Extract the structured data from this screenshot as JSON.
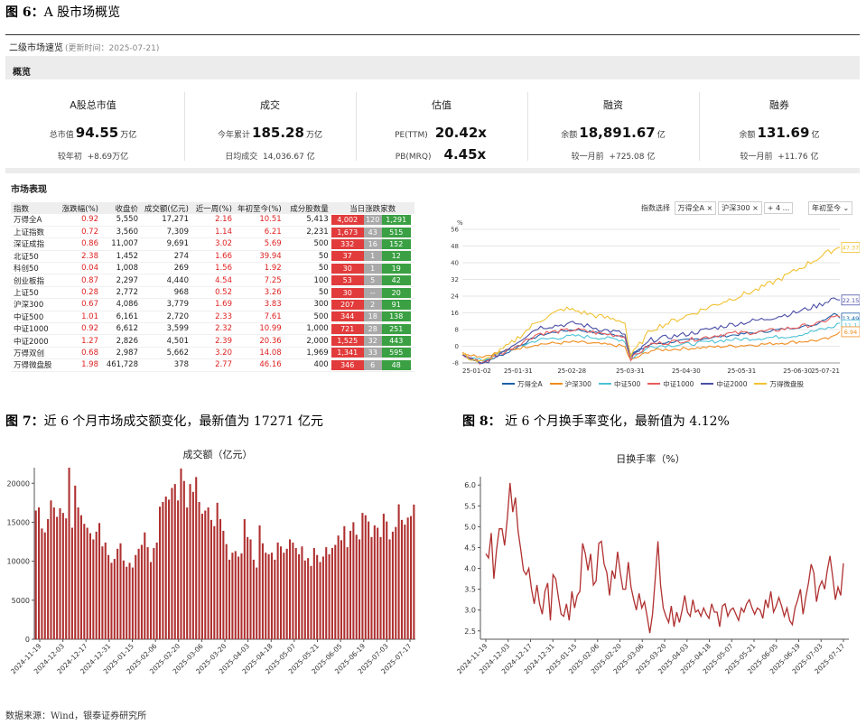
{
  "fig6": {
    "label": "图 6：",
    "text": "A 股市场概览"
  },
  "panel": {
    "title": "二级市场速览",
    "updated": "(更新时间：2025-07-21)",
    "overview_label": "概览",
    "market_label": "市场表现"
  },
  "cards": [
    {
      "title": "A股总市值",
      "l1": "总市值",
      "v1": "94.55",
      "u1": "万亿",
      "l2": "较年初",
      "v2": "+8.69万亿"
    },
    {
      "title": "成交",
      "l1": "今年累计",
      "v1": "185.28",
      "u1": "万亿",
      "l2": "日均成交",
      "v2": "14,036.67 亿"
    },
    {
      "title": "估值",
      "l1": "PE(TTM)",
      "v1": "20.42x",
      "u1": "",
      "l2": "PB(MRQ)",
      "v2": "4.45x"
    },
    {
      "title": "融资",
      "l1": "余额",
      "v1": "18,891.67",
      "u1": "亿",
      "l2": "较一月前",
      "v2": "+725.08 亿"
    },
    {
      "title": "融券",
      "l1": "余额",
      "v1": "131.69",
      "u1": "亿",
      "l2": "较一月前",
      "v2": "+11.76 亿"
    }
  ],
  "table": {
    "headers": [
      "指数",
      "涨跌幅(%)",
      "收盘价",
      "成交额(亿元)",
      "近一周(%)",
      "年初至今(%)",
      "成分股数量",
      "当日涨跌家数"
    ],
    "rows": [
      [
        "万得全A",
        "0.92",
        "5,550",
        "17,271",
        "2.16",
        "10.51",
        "5,413",
        "4,002",
        "120",
        "1,291"
      ],
      [
        "上证指数",
        "0.72",
        "3,560",
        "7,309",
        "1.14",
        "6.21",
        "2,231",
        "1,673",
        "43",
        "515"
      ],
      [
        "深证成指",
        "0.86",
        "11,007",
        "9,691",
        "3.02",
        "5.69",
        "500",
        "332",
        "16",
        "152"
      ],
      [
        "北证50",
        "2.38",
        "1,452",
        "274",
        "1.66",
        "39.94",
        "50",
        "37",
        "1",
        "12"
      ],
      [
        "科创50",
        "0.04",
        "1,008",
        "269",
        "1.56",
        "1.92",
        "50",
        "30",
        "1",
        "19"
      ],
      [
        "创业板指",
        "0.87",
        "2,297",
        "4,440",
        "4.54",
        "7.25",
        "100",
        "53",
        "5",
        "42"
      ],
      [
        "上证50",
        "0.28",
        "2,772",
        "968",
        "0.52",
        "3.26",
        "50",
        "30",
        "--",
        "20"
      ],
      [
        "沪深300",
        "0.67",
        "4,086",
        "3,779",
        "1.69",
        "3.83",
        "300",
        "207",
        "2",
        "91"
      ],
      [
        "中证500",
        "1.01",
        "6,161",
        "2,720",
        "2.33",
        "7.61",
        "500",
        "344",
        "18",
        "138"
      ],
      [
        "中证1000",
        "0.92",
        "6,612",
        "3,599",
        "2.32",
        "10.99",
        "1,000",
        "721",
        "28",
        "251"
      ],
      [
        "中证2000",
        "1.27",
        "2,826",
        "4,501",
        "2.39",
        "20.36",
        "2,000",
        "1,525",
        "32",
        "443"
      ],
      [
        "万得双创",
        "0.68",
        "2,987",
        "5,662",
        "3.20",
        "14.08",
        "1,969",
        "1,341",
        "33",
        "595"
      ],
      [
        "万得微盘股",
        "1.98",
        "461,728",
        "378",
        "2.77",
        "46.16",
        "400",
        "346",
        "6",
        "48"
      ]
    ]
  },
  "controls": {
    "label": "指数选择",
    "chip1": "万得全A ×",
    "chip2": "沪深300 ×",
    "chip3": "+ 4 ...",
    "period": "年初至今 ⌄"
  },
  "line_chart": {
    "unit": "%",
    "y_ticks": [
      "56",
      "48",
      "40",
      "32",
      "24",
      "16",
      "8",
      "0",
      "-8"
    ],
    "x_ticks": [
      "25-01-02",
      "25-01-31",
      "25-02-28",
      "25-03-31",
      "25-04-30",
      "25-05-31",
      "25-06-30",
      "25-07-21"
    ],
    "end_labels": [
      "47.37",
      "22.15",
      "14.06",
      "13.49",
      "11.1",
      "6.94"
    ],
    "legend": [
      "万得全A",
      "沪深300",
      "中证500",
      "中证1000",
      "中证2000",
      "万得微盘股"
    ],
    "colors": [
      "#1f5fa8",
      "#f08c1e",
      "#4cc2d6",
      "#e85c5c",
      "#4b4fa6",
      "#f1c232"
    ]
  },
  "fig7": {
    "label": "图 7：",
    "text": "近 6 个月市场成交额变化，最新值为 17271 亿元"
  },
  "fig8": {
    "label": "图 8：",
    "text": "近 6 个月换手率变化，最新值为 4.12%"
  },
  "chart_data": [
    {
      "type": "bar",
      "title": "成交额（亿元）",
      "ylim": [
        0,
        22000
      ],
      "y_ticks": [
        0,
        5000,
        10000,
        15000,
        20000
      ],
      "x_tick_labels": [
        "2024-11-19",
        "2024-12-03",
        "2024-12-17",
        "2024-12-31",
        "2025-01-15",
        "2025-02-06",
        "2025-02-20",
        "2025-03-06",
        "2025-03-20",
        "2025-04-03",
        "2025-04-18",
        "2025-05-07",
        "2025-05-21",
        "2025-06-05",
        "2025-06-19",
        "2025-07-03",
        "2025-07-17"
      ],
      "color": "#b03030",
      "values": [
        16500,
        16900,
        14200,
        13700,
        15400,
        17800,
        16900,
        15700,
        16800,
        16200,
        15500,
        22000,
        14300,
        19700,
        16900,
        15900,
        14800,
        14300,
        13600,
        12800,
        13800,
        14900,
        11900,
        12400,
        10800,
        9800,
        10300,
        11600,
        12300,
        10100,
        9300,
        9800,
        9200,
        10800,
        11600,
        12100,
        13700,
        11800,
        9900,
        11700,
        12400,
        17000,
        17600,
        18300,
        17900,
        19400,
        19900,
        17800,
        21900,
        20300,
        16900,
        19900,
        18900,
        20800,
        17600,
        16100,
        16500,
        16900,
        15300,
        14500,
        17500,
        15400,
        13900,
        12200,
        10200,
        11100,
        11300,
        10600,
        11000,
        15400,
        13100,
        12800,
        10200,
        9200,
        14600,
        12300,
        11100,
        10900,
        11100,
        10200,
        12400,
        11900,
        11100,
        11600,
        12800,
        12400,
        11700,
        10900,
        11900,
        10100,
        10400,
        9400,
        11700,
        10800,
        9900,
        10600,
        11800,
        10900,
        11700,
        12100,
        13300,
        12700,
        14500,
        11800,
        13900,
        15000,
        13400,
        12800,
        16200,
        15900,
        15100,
        13100,
        14600,
        14300,
        13100,
        16100,
        15100,
        12800,
        13800,
        14400,
        17300,
        15300,
        14700,
        15600,
        15800,
        17271
      ]
    },
    {
      "type": "line",
      "title": "日换手率（%）",
      "ylim": [
        2.3,
        6.2
      ],
      "y_ticks": [
        2.5,
        3.0,
        3.5,
        4.0,
        4.5,
        5.0,
        5.5,
        6.0
      ],
      "x_tick_labels": [
        "2024-11-19",
        "2024-12-03",
        "2024-12-17",
        "2024-12-31",
        "2025-01-15",
        "2025-02-06",
        "2025-02-20",
        "2025-03-06",
        "2025-03-20",
        "2025-04-03",
        "2025-04-18",
        "2025-05-07",
        "2025-05-21",
        "2025-06-05",
        "2025-06-19",
        "2025-07-03",
        "2025-07-17"
      ],
      "color": "#b03030",
      "values": [
        4.35,
        4.25,
        4.85,
        3.75,
        4.45,
        4.95,
        4.95,
        4.55,
        5.2,
        6.05,
        5.35,
        5.7,
        4.9,
        4.45,
        3.95,
        3.85,
        4.0,
        3.5,
        3.15,
        3.6,
        3.15,
        2.9,
        3.45,
        3.65,
        2.75,
        3.85,
        3.75,
        3.3,
        2.9,
        2.85,
        3.15,
        2.75,
        3.45,
        3.05,
        3.35,
        3.45,
        4.6,
        4.35,
        3.95,
        4.35,
        3.6,
        3.7,
        4.6,
        4.65,
        4.1,
        3.9,
        3.35,
        3.95,
        3.75,
        4.4,
        3.9,
        3.5,
        3.5,
        4.15,
        3.55,
        3.25,
        3.0,
        3.4,
        3.05,
        3.2,
        2.85,
        2.45,
        2.9,
        3.75,
        4.65,
        3.6,
        3.05,
        2.85,
        2.7,
        3.1,
        2.6,
        2.95,
        2.7,
        3.0,
        3.35,
        2.95,
        2.85,
        3.25,
        2.95,
        3.0,
        2.85,
        3.05,
        2.9,
        2.8,
        3.15,
        2.95,
        2.95,
        2.6,
        3.1,
        3.15,
        2.85,
        3.0,
        3.05,
        2.9,
        2.75,
        3.05,
        2.95,
        3.15,
        3.25,
        3.05,
        2.9,
        3.05,
        3.0,
        2.8,
        3.25,
        3.05,
        3.45,
        2.95,
        3.1,
        3.3,
        3.1,
        2.85,
        3.05,
        2.75,
        2.65,
        3.05,
        3.25,
        3.5,
        2.9,
        3.3,
        3.65,
        4.1,
        3.9,
        3.2,
        3.55,
        3.7,
        3.5,
        3.95,
        4.3,
        3.8,
        3.25,
        3.55,
        3.35,
        4.12
      ]
    }
  ],
  "source": "数据来源：Wind，银泰证券研究所"
}
